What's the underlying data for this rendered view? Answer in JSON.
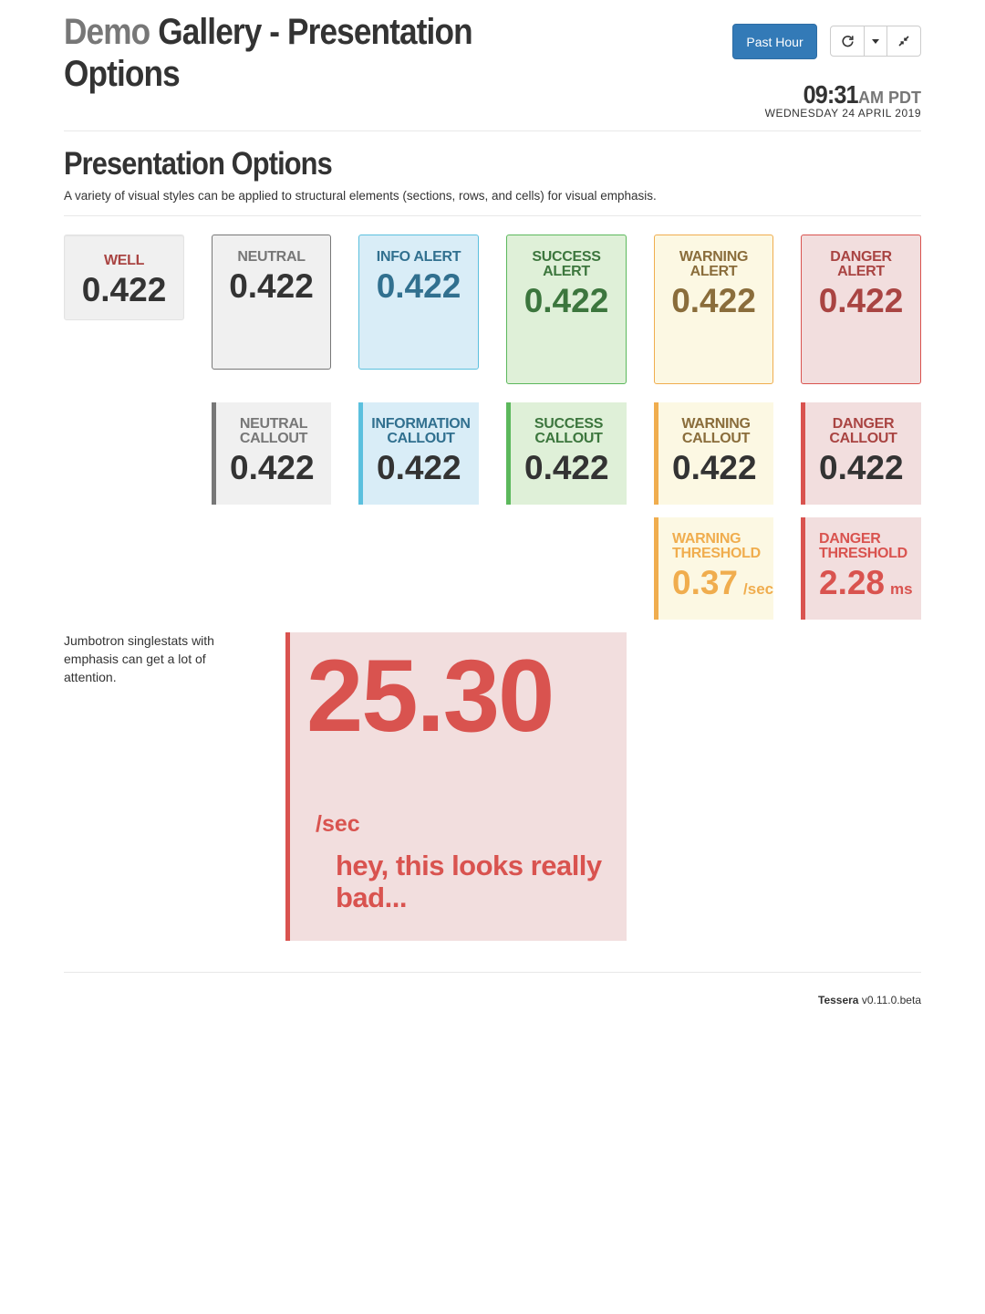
{
  "header": {
    "title_category": "Demo",
    "title_main": "Gallery - Presentation Options",
    "range_button": "Past Hour",
    "clock_time": "09:31",
    "clock_ampm": "AM PDT",
    "clock_date": "WEDNESDAY 24 APRIL 2019"
  },
  "section": {
    "title": "Presentation Options",
    "description": "A variety of visual styles can be applied to structural elements (sections, rows, and cells) for visual emphasis."
  },
  "row1": [
    {
      "label": "WELL",
      "value": "0.422"
    },
    {
      "label": "NEUTRAL",
      "value": "0.422"
    },
    {
      "label": "INFO ALERT",
      "value": "0.422"
    },
    {
      "label": "SUCCESS ALERT",
      "value": "0.422"
    },
    {
      "label": "WARNING ALERT",
      "value": "0.422"
    },
    {
      "label": "DANGER ALERT",
      "value": "0.422"
    }
  ],
  "row2": [
    {
      "label": "NEUTRAL CALLOUT",
      "value": "0.422"
    },
    {
      "label": "INFORMATION CALLOUT",
      "value": "0.422"
    },
    {
      "label": "SUCCESS CALLOUT",
      "value": "0.422"
    },
    {
      "label": "WARNING CALLOUT",
      "value": "0.422"
    },
    {
      "label": "DANGER CALLOUT",
      "value": "0.422"
    }
  ],
  "row3": [
    {
      "label": "WARNING THRESHOLD",
      "value": "0.37",
      "unit": "/sec"
    },
    {
      "label": "DANGER THRESHOLD",
      "value": "2.28",
      "unit": "ms"
    }
  ],
  "jumbotron": {
    "note": "Jumbotron singlestats with emphasis can get a lot of attention.",
    "value": "25.30",
    "unit": "/sec",
    "message": "hey, this looks really bad..."
  },
  "footer": {
    "brand": "Tessera",
    "version": "v0.11.0.beta"
  },
  "colors": {
    "primary": "#337ab7",
    "info": "#31708f",
    "success": "#3c763d",
    "warning": "#8a6d3b",
    "danger": "#a94442",
    "danger_bright": "#d9534f",
    "warning_bright": "#f0ad4e"
  },
  "icons": [
    "refresh-icon",
    "caret-down-icon",
    "compress-icon"
  ]
}
